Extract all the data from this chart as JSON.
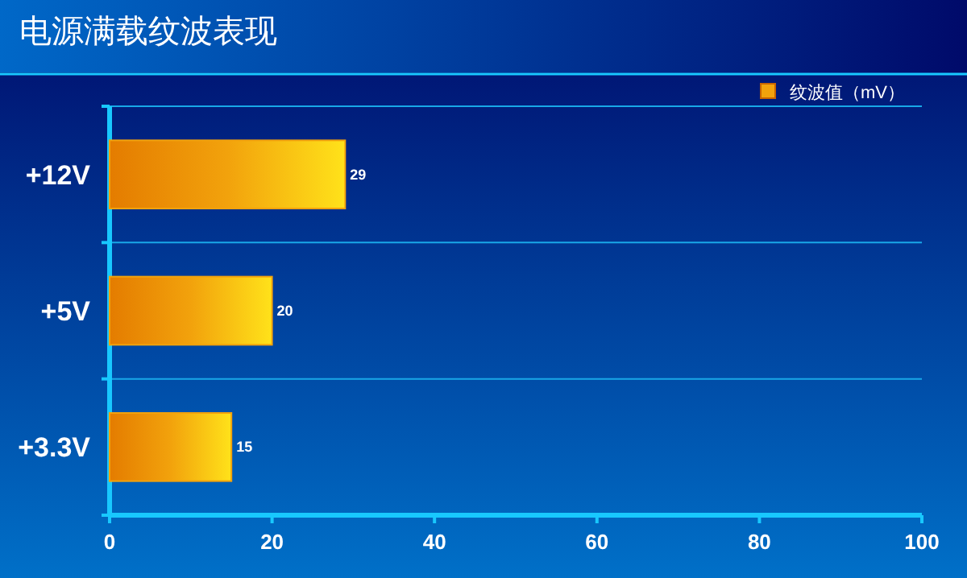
{
  "chart_data": {
    "type": "bar",
    "orientation": "horizontal",
    "title": "电源满载纹波表现",
    "categories": [
      "+12V",
      "+5V",
      "+3.3V"
    ],
    "series": [
      {
        "name": "纹波值（mV）",
        "color": "#f2a20c",
        "values": [
          29,
          20,
          15
        ]
      }
    ],
    "xlim": [
      0,
      100
    ],
    "xticks": [
      0,
      20,
      40,
      60,
      80,
      100
    ],
    "grid": "y",
    "legend": "top right",
    "data_labels": true
  }
}
